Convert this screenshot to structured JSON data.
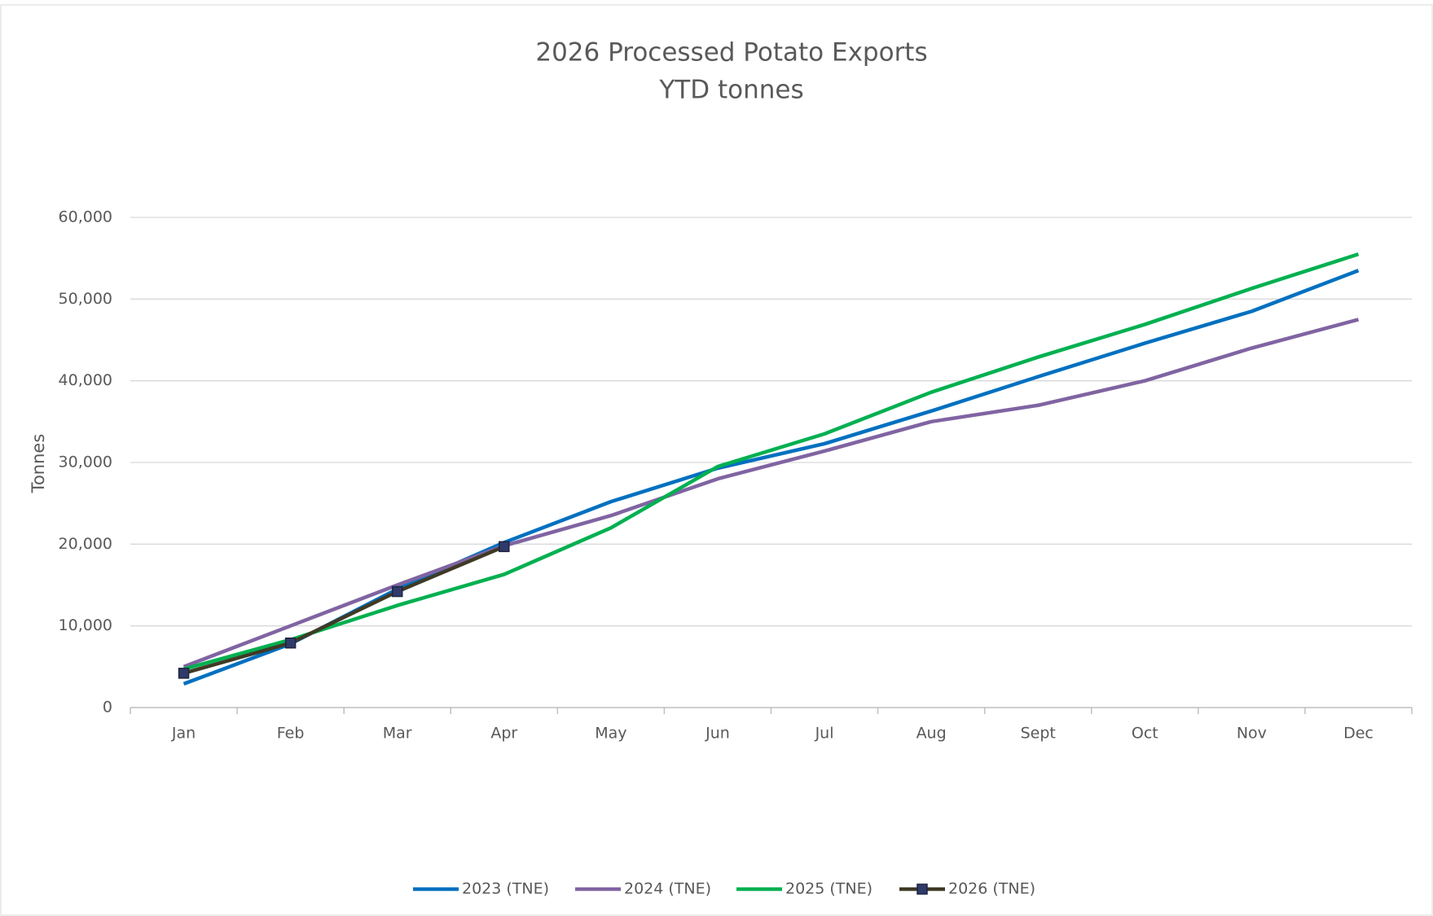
{
  "chart_data": {
    "type": "line",
    "title": "2026 Processed Potato Exports",
    "subtitle": "YTD tonnes",
    "y_label": "Tonnes",
    "categories": [
      "Jan",
      "Feb",
      "Mar",
      "Apr",
      "May",
      "Jun",
      "Jul",
      "Aug",
      "Sept",
      "Oct",
      "Nov",
      "Dec"
    ],
    "series": [
      {
        "name": "2023 (TNE)",
        "color": "#0070c0",
        "values": [
          2900,
          7800,
          14500,
          20200,
          25200,
          29300,
          32300,
          36300,
          40500,
          44600,
          48500,
          53500
        ]
      },
      {
        "name": "2024 (TNE)",
        "color": "#8064a2",
        "values": [
          5000,
          10000,
          15000,
          19800,
          23500,
          28000,
          31400,
          35000,
          37000,
          40000,
          44000,
          47500
        ]
      },
      {
        "name": "2025 (TNE)",
        "color": "#00b050",
        "values": [
          4700,
          8300,
          12500,
          16300,
          22000,
          29500,
          33500,
          38600,
          42900,
          46900,
          51300,
          55500
        ]
      },
      {
        "name": "2026 (TNE)",
        "color": "#3f3a25",
        "marker_color": "#2f3a6a",
        "values": [
          4200,
          7900,
          14200,
          19700,
          null,
          null,
          null,
          null,
          null,
          null,
          null,
          null
        ]
      }
    ],
    "ylim": [
      0,
      60000
    ],
    "yticks": [
      0,
      {
        "value": 10000,
        "label": "10,000"
      },
      {
        "value": 20000,
        "label": "20,000"
      },
      {
        "value": 30000,
        "label": "30,000"
      },
      {
        "value": 40000,
        "label": "40,000"
      },
      {
        "value": 50000,
        "label": "50,000"
      },
      {
        "value": 60000,
        "label": "60,000"
      }
    ],
    "grid": true,
    "legend": "bottom"
  }
}
